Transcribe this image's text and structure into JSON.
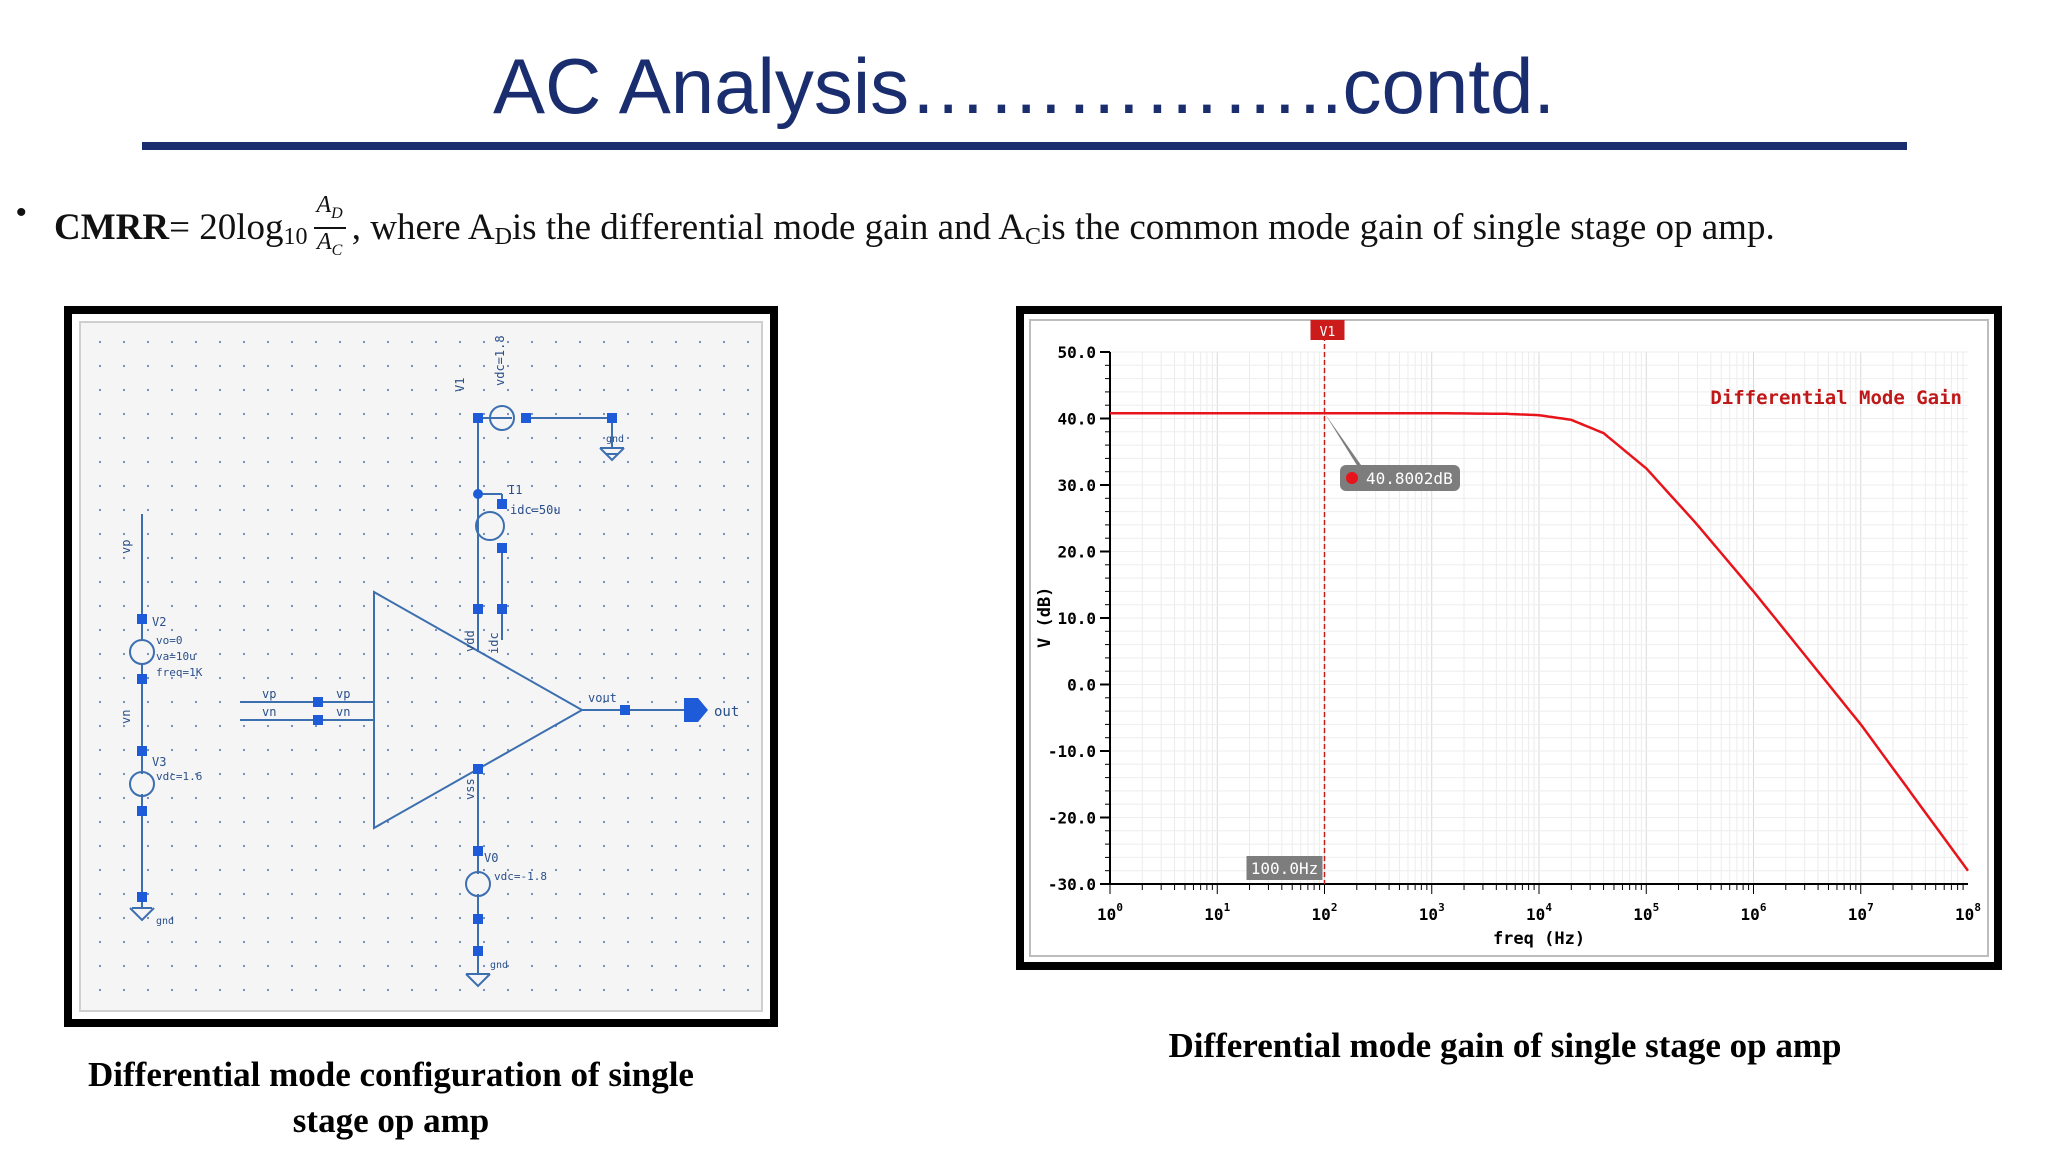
{
  "slide": {
    "title": "AC Analysis……………..contd.",
    "bullet": "•",
    "formula": {
      "label": "CMRR",
      "equals": " = 20log",
      "log_base": "10",
      "numerator": "A",
      "numerator_sub": "D",
      "denominator": "A",
      "denominator_sub": "C",
      "text_1": ", where A",
      "sub_d": "D",
      "text_2": " is the differential mode gain and A",
      "sub_c": "C",
      "text_3": " is the common mode gain of single stage op amp."
    },
    "caption_left": "Differential mode configuration of single stage op amp",
    "caption_right": "Differential mode gain of single stage op amp"
  },
  "schematic": {
    "labels": {
      "v1": "V1",
      "vdc_top": "vdc=1.8",
      "gnd_top": "gnd",
      "i1": "I1",
      "idc": "idc=50u",
      "vp_wire": "vp",
      "vn_wire": "vn",
      "v2": "V2",
      "vo": "vo=0",
      "va": "va=10u",
      "freq": "freq=1K",
      "v3": "V3",
      "vdc_v3": "vdc=1.6",
      "gnd_left": "gnd",
      "vp_in": "vp",
      "vn_in": "vn",
      "vp_pin": "vp",
      "vn_pin": "vn",
      "vdd_pin": "vdd",
      "idc_pin": "idc",
      "vss_pin": "vss",
      "vout_pin": "vout",
      "out": "out",
      "v0": "V0",
      "vdc_v0": "vdc=-1.8",
      "gnd_bottom": "gnd"
    }
  },
  "chart_data": {
    "type": "line",
    "title": "",
    "xlabel": "freq (Hz)",
    "ylabel": "V (dB)",
    "x_scale": "log",
    "xlim": [
      1,
      100000000
    ],
    "ylim": [
      -30,
      50
    ],
    "y_ticks": [
      "50.0",
      "40.0",
      "30.0",
      "20.0",
      "10.0",
      "0.0",
      "-10.0",
      "-20.0",
      "-30.0"
    ],
    "x_ticks": [
      {
        "base": "10",
        "exp": "0"
      },
      {
        "base": "10",
        "exp": "1"
      },
      {
        "base": "10",
        "exp": "2"
      },
      {
        "base": "10",
        "exp": "3"
      },
      {
        "base": "10",
        "exp": "4"
      },
      {
        "base": "10",
        "exp": "5"
      },
      {
        "base": "10",
        "exp": "6"
      },
      {
        "base": "10",
        "exp": "7"
      },
      {
        "base": "10",
        "exp": "8"
      }
    ],
    "grid": true,
    "legend_position": "top-right",
    "series": [
      {
        "name": "Differential Mode Gain",
        "color": "#e8141b",
        "x": [
          1,
          10,
          100,
          1000,
          5000,
          10000,
          20000,
          40000,
          100000,
          300000,
          1000000,
          10000000,
          100000000
        ],
        "y": [
          40.8,
          40.8,
          40.8,
          40.8,
          40.7,
          40.5,
          39.8,
          37.8,
          32.5,
          24,
          14,
          -6,
          -28
        ]
      }
    ],
    "marker": {
      "name": "V1",
      "x": 100,
      "x_label": "100.0Hz",
      "y_label": "40.8002dB"
    }
  },
  "colors": {
    "title": "#1a2d6e",
    "schematic_wire": "#3c6fb0",
    "schematic_pin": "#1e5bd8",
    "schematic_dot": "#6b87b8",
    "trace": "#e8141b"
  }
}
